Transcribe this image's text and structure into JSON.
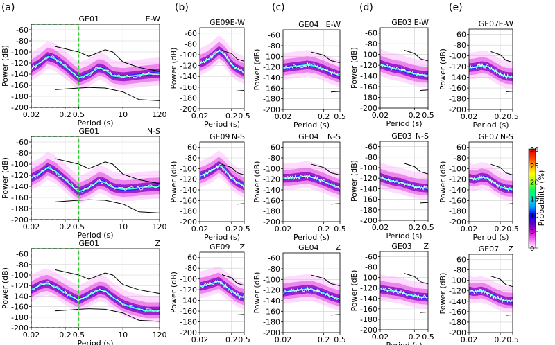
{
  "figure": {
    "panel_labels": [
      "(a)",
      "(b)",
      "(c)",
      "(d)",
      "(e)"
    ],
    "colorbar": {
      "label": "Probability (%)",
      "ticks": [
        0,
        5,
        10,
        15,
        20,
        25,
        30
      ],
      "colors": [
        "#ffffff",
        "#ff66ff",
        "#cc00cc",
        "#5500cc",
        "#0000ff",
        "#00a0ff",
        "#00e8c8",
        "#00ff60",
        "#a0ff00",
        "#ffff00",
        "#ffa000",
        "#ff3000",
        "#e00000"
      ]
    }
  },
  "chart_data": [
    {
      "type": "line",
      "station": "GE01",
      "component": "E-W",
      "xlabel": "Period (s)",
      "ylabel": "Power (dB)",
      "xscale": "log",
      "xlim": [
        0.02,
        120
      ],
      "ylim": [
        -200,
        -50
      ],
      "xticks": [
        "0.02",
        "0.2",
        "0.5",
        "10",
        "120"
      ],
      "yticks": [
        "-60",
        "-80",
        "-100",
        "-120",
        "-140",
        "-160",
        "-180",
        "-200"
      ],
      "highlight_box": [
        0.02,
        0.5
      ],
      "series": [
        {
          "role": "mode",
          "x": [
            0.02,
            0.04,
            0.06,
            0.1,
            0.2,
            0.5,
            1,
            2,
            3,
            5,
            10,
            20,
            50,
            120
          ],
          "y": [
            -130,
            -118,
            -108,
            -112,
            -126,
            -147,
            -140,
            -128,
            -132,
            -143,
            -145,
            -143,
            -140,
            -138
          ]
        }
      ]
    },
    {
      "type": "line",
      "station": "GE01",
      "component": "N-S",
      "xlabel": "Period (s)",
      "ylabel": "Power (dB)",
      "xscale": "log",
      "xlim": [
        0.02,
        120
      ],
      "ylim": [
        -200,
        -50
      ],
      "xticks": [
        "0.02",
        "0.2",
        "0.5",
        "10",
        "120"
      ],
      "yticks": [
        "-60",
        "-80",
        "-100",
        "-120",
        "-140",
        "-160",
        "-180",
        "-200"
      ],
      "highlight_box": [
        0.02,
        0.5
      ],
      "series": [
        {
          "role": "mode",
          "x": [
            0.02,
            0.04,
            0.06,
            0.1,
            0.2,
            0.5,
            1,
            2,
            3,
            5,
            10,
            20,
            50,
            120
          ],
          "y": [
            -125,
            -115,
            -106,
            -112,
            -128,
            -150,
            -142,
            -130,
            -133,
            -142,
            -145,
            -144,
            -141,
            -140
          ]
        }
      ]
    },
    {
      "type": "line",
      "station": "GE01",
      "component": "Z",
      "xlabel": "Period (s)",
      "ylabel": "Power (dB)",
      "xscale": "log",
      "xlim": [
        0.02,
        120
      ],
      "ylim": [
        -200,
        -50
      ],
      "xticks": [
        "0.02",
        "0.2",
        "0.5",
        "10",
        "120"
      ],
      "yticks": [
        "-60",
        "-80",
        "-100",
        "-120",
        "-140",
        "-160",
        "-180",
        "-200"
      ],
      "highlight_box": [
        0.02,
        0.5
      ],
      "series": [
        {
          "role": "mode",
          "x": [
            0.02,
            0.04,
            0.06,
            0.1,
            0.2,
            0.5,
            1,
            2,
            3,
            5,
            10,
            20,
            50,
            120
          ],
          "y": [
            -128,
            -118,
            -116,
            -122,
            -134,
            -148,
            -138,
            -128,
            -130,
            -142,
            -155,
            -162,
            -168,
            -168
          ]
        }
      ]
    },
    {
      "type": "line",
      "station": "GE09",
      "component": "E-W",
      "xlabel": "Period (s)",
      "ylabel": "Power (dB)",
      "xscale": "log",
      "xlim": [
        0.02,
        0.5
      ],
      "ylim": [
        -200,
        -50
      ],
      "xticks": [
        "0.02",
        "0.2",
        "0.5"
      ],
      "yticks": [
        "-60",
        "-80",
        "-100",
        "-120",
        "-140",
        "-160",
        "-180",
        "-200"
      ],
      "series": [
        {
          "role": "mode",
          "x": [
            0.02,
            0.03,
            0.05,
            0.08,
            0.12,
            0.2,
            0.3,
            0.5
          ],
          "y": [
            -116,
            -112,
            -103,
            -92,
            -100,
            -118,
            -126,
            -132
          ]
        }
      ]
    },
    {
      "type": "line",
      "station": "GE09",
      "component": "N-S",
      "xlabel": "Period (s)",
      "ylabel": "Power (dB)",
      "xscale": "log",
      "xlim": [
        0.02,
        0.5
      ],
      "ylim": [
        -200,
        -50
      ],
      "xticks": [
        "0.02",
        "0.2",
        "0.5"
      ],
      "yticks": [
        "-60",
        "-80",
        "-100",
        "-120",
        "-140",
        "-160",
        "-180",
        "-200"
      ],
      "series": [
        {
          "role": "mode",
          "x": [
            0.02,
            0.03,
            0.05,
            0.08,
            0.12,
            0.2,
            0.3,
            0.5
          ],
          "y": [
            -114,
            -110,
            -103,
            -94,
            -102,
            -118,
            -126,
            -133
          ]
        }
      ]
    },
    {
      "type": "line",
      "station": "GE09",
      "component": "Z",
      "xlabel": "Period (s)",
      "ylabel": "Power (dB)",
      "xscale": "log",
      "xlim": [
        0.02,
        0.5
      ],
      "ylim": [
        -200,
        -50
      ],
      "xticks": [
        "0.02",
        "0.2",
        "0.5"
      ],
      "yticks": [
        "-60",
        "-80",
        "-100",
        "-120",
        "-140",
        "-160",
        "-180",
        "-200"
      ],
      "series": [
        {
          "role": "mode",
          "x": [
            0.02,
            0.03,
            0.05,
            0.08,
            0.12,
            0.2,
            0.3,
            0.5
          ],
          "y": [
            -114,
            -112,
            -108,
            -104,
            -112,
            -122,
            -130,
            -135
          ]
        }
      ]
    },
    {
      "type": "line",
      "station": "GE04",
      "component": "E-W",
      "xlabel": "Period (s)",
      "ylabel": "Power (dB)",
      "xscale": "log",
      "xlim": [
        0.02,
        0.5
      ],
      "ylim": [
        -200,
        -50
      ],
      "xticks": [
        "0.02",
        "0.2",
        "0.5"
      ],
      "yticks": [
        "-60",
        "-80",
        "-100",
        "-120",
        "-140",
        "-160",
        "-180",
        "-200"
      ],
      "series": [
        {
          "role": "mode",
          "x": [
            0.02,
            0.03,
            0.05,
            0.08,
            0.12,
            0.2,
            0.3,
            0.5
          ],
          "y": [
            -122,
            -120,
            -118,
            -116,
            -118,
            -124,
            -130,
            -136
          ]
        }
      ]
    },
    {
      "type": "line",
      "station": "GE04",
      "component": "N-S",
      "xlabel": "Period (s)",
      "ylabel": "Power (dB)",
      "xscale": "log",
      "xlim": [
        0.02,
        0.5
      ],
      "ylim": [
        -200,
        -50
      ],
      "xticks": [
        "0.02",
        "0.2",
        "0.5"
      ],
      "yticks": [
        "-60",
        "-80",
        "-100",
        "-120",
        "-140",
        "-160",
        "-180",
        "-200"
      ],
      "series": [
        {
          "role": "mode",
          "x": [
            0.02,
            0.03,
            0.05,
            0.08,
            0.12,
            0.2,
            0.3,
            0.5
          ],
          "y": [
            -118,
            -118,
            -116,
            -114,
            -118,
            -124,
            -130,
            -136
          ]
        }
      ]
    },
    {
      "type": "line",
      "station": "GE04",
      "component": "Z",
      "xlabel": "Period (s)",
      "ylabel": "Power (dB)",
      "xscale": "log",
      "xlim": [
        0.02,
        0.5
      ],
      "ylim": [
        -200,
        -50
      ],
      "xticks": [
        "0.02",
        "0.2",
        "0.5"
      ],
      "yticks": [
        "-60",
        "-80",
        "-100",
        "-120",
        "-140",
        "-160",
        "-180",
        "-200"
      ],
      "series": [
        {
          "role": "mode",
          "x": [
            0.02,
            0.03,
            0.05,
            0.08,
            0.12,
            0.2,
            0.3,
            0.5
          ],
          "y": [
            -124,
            -122,
            -120,
            -118,
            -120,
            -126,
            -132,
            -137
          ]
        }
      ]
    },
    {
      "type": "line",
      "station": "GE03",
      "component": "E-W",
      "xlabel": "Period (s)",
      "ylabel": "Power (dB)",
      "xscale": "log",
      "xlim": [
        0.02,
        0.5
      ],
      "ylim": [
        -200,
        -50
      ],
      "xticks": [
        "0.02",
        "0.2",
        "0.5"
      ],
      "yticks": [
        "-60",
        "-80",
        "-100",
        "-120",
        "-140",
        "-160",
        "-180",
        "-200"
      ],
      "series": [
        {
          "role": "mode",
          "x": [
            0.02,
            0.03,
            0.05,
            0.08,
            0.12,
            0.2,
            0.3,
            0.5
          ],
          "y": [
            -118,
            -122,
            -126,
            -128,
            -132,
            -136,
            -138,
            -139
          ]
        }
      ]
    },
    {
      "type": "line",
      "station": "GE03",
      "component": "N-S",
      "xlabel": "Period (s)",
      "ylabel": "Power (dB)",
      "xscale": "log",
      "xlim": [
        0.02,
        0.5
      ],
      "ylim": [
        -200,
        -50
      ],
      "xticks": [
        "0.02",
        "0.2",
        "0.5"
      ],
      "yticks": [
        "-60",
        "-80",
        "-100",
        "-120",
        "-140",
        "-160",
        "-180",
        "-200"
      ],
      "series": [
        {
          "role": "mode",
          "x": [
            0.02,
            0.03,
            0.05,
            0.08,
            0.12,
            0.2,
            0.3,
            0.5
          ],
          "y": [
            -118,
            -122,
            -126,
            -128,
            -132,
            -136,
            -138,
            -139
          ]
        }
      ]
    },
    {
      "type": "line",
      "station": "GE03",
      "component": "Z",
      "xlabel": "Period (s)",
      "ylabel": "Power (dB)",
      "xscale": "log",
      "xlim": [
        0.02,
        0.5
      ],
      "ylim": [
        -200,
        -50
      ],
      "xticks": [
        "0.02",
        "0.2",
        "0.5"
      ],
      "yticks": [
        "-60",
        "-80",
        "-100",
        "-120",
        "-140",
        "-160",
        "-180",
        "-200"
      ],
      "series": [
        {
          "role": "mode",
          "x": [
            0.02,
            0.03,
            0.05,
            0.08,
            0.12,
            0.2,
            0.3,
            0.5
          ],
          "y": [
            -122,
            -124,
            -126,
            -128,
            -132,
            -135,
            -137,
            -138
          ]
        }
      ]
    },
    {
      "type": "line",
      "station": "GE07",
      "component": "E-W",
      "xlabel": "Period (s)",
      "ylabel": "Power (dB)",
      "xscale": "log",
      "xlim": [
        0.02,
        0.5
      ],
      "ylim": [
        -200,
        -50
      ],
      "xticks": [
        "0.02",
        "0.2",
        "0.5"
      ],
      "yticks": [
        "-60",
        "-80",
        "-100",
        "-120",
        "-140",
        "-160",
        "-180",
        "-200"
      ],
      "series": [
        {
          "role": "mode",
          "x": [
            0.02,
            0.03,
            0.05,
            0.08,
            0.12,
            0.2,
            0.3,
            0.5
          ],
          "y": [
            -122,
            -121,
            -118,
            -120,
            -126,
            -134,
            -138,
            -139
          ]
        }
      ]
    },
    {
      "type": "line",
      "station": "GE07",
      "component": "N-S",
      "xlabel": "Period (s)",
      "ylabel": "Power (dB)",
      "xscale": "log",
      "xlim": [
        0.02,
        0.5
      ],
      "ylim": [
        -200,
        -50
      ],
      "xticks": [
        "0.02",
        "0.2",
        "0.5"
      ],
      "yticks": [
        "-60",
        "-80",
        "-100",
        "-120",
        "-140",
        "-160",
        "-180",
        "-200"
      ],
      "series": [
        {
          "role": "mode",
          "x": [
            0.02,
            0.03,
            0.05,
            0.08,
            0.12,
            0.2,
            0.3,
            0.5
          ],
          "y": [
            -118,
            -120,
            -116,
            -118,
            -126,
            -134,
            -138,
            -139
          ]
        }
      ]
    },
    {
      "type": "line",
      "station": "GE07",
      "component": "Z",
      "xlabel": "Period (s)",
      "ylabel": "Power (dB)",
      "xscale": "log",
      "xlim": [
        0.02,
        0.5
      ],
      "ylim": [
        -200,
        -50
      ],
      "xticks": [
        "0.02",
        "0.2",
        "0.5"
      ],
      "yticks": [
        "-60",
        "-80",
        "-100",
        "-120",
        "-140",
        "-160",
        "-180",
        "-200"
      ],
      "series": [
        {
          "role": "mode",
          "x": [
            0.02,
            0.03,
            0.05,
            0.08,
            0.12,
            0.2,
            0.3,
            0.5
          ],
          "y": [
            -120,
            -122,
            -120,
            -124,
            -130,
            -136,
            -139,
            -140
          ]
        }
      ]
    }
  ]
}
